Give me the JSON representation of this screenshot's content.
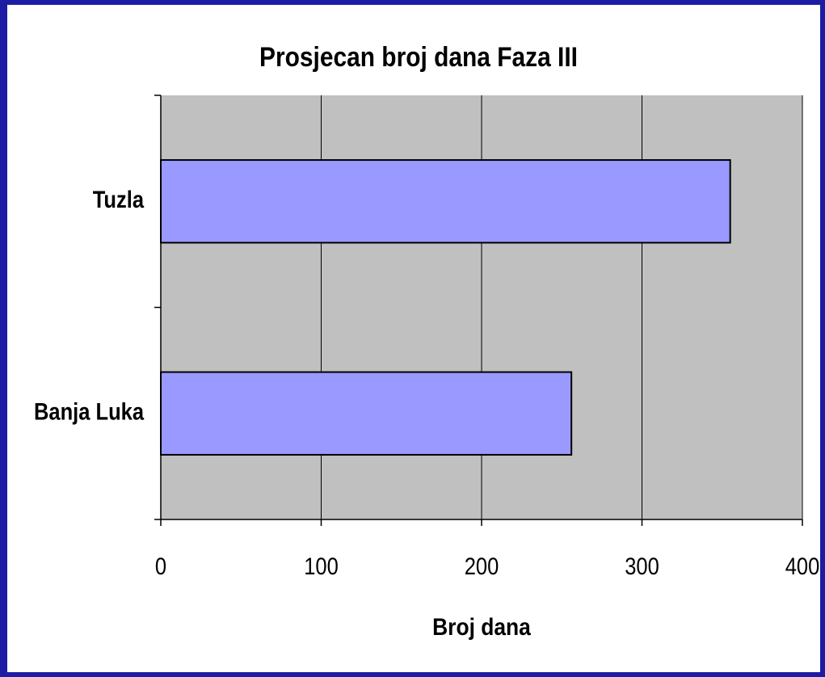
{
  "chart_data": {
    "type": "bar",
    "orientation": "horizontal",
    "title": "Prosjecan broj dana Faza III",
    "x_label": "Broj dana",
    "categories": [
      "Tuzla",
      "Banja Luka"
    ],
    "values": [
      355,
      256
    ],
    "color": "#9999ff",
    "xlim": [
      0,
      400
    ],
    "xticks": [
      0,
      100,
      200,
      300,
      400
    ],
    "grid": true
  }
}
